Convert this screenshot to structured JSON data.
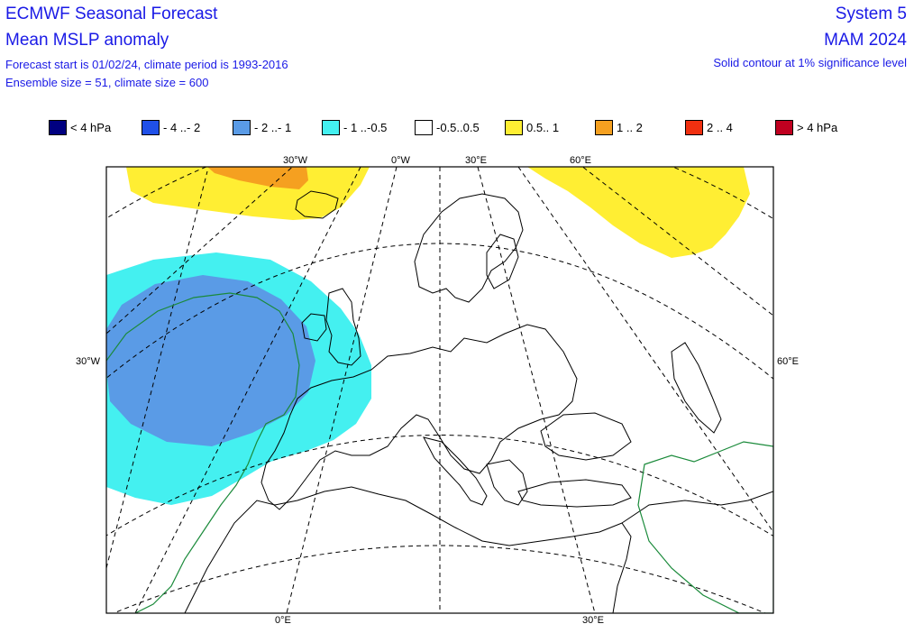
{
  "header": {
    "title": "ECMWF Seasonal Forecast",
    "subtitle": "Mean MSLP anomaly",
    "forecast_start": "Forecast start is 01/02/24, climate period is 1993-2016",
    "ensemble": "Ensemble size = 51, climate size = 600",
    "system": "System 5",
    "season": "MAM 2024",
    "significance": "Solid contour at 1% significance level"
  },
  "legend": [
    {
      "label": "< 4 hPa",
      "color": "#000080"
    },
    {
      "label": "- 4 ..- 2",
      "color": "#2050e8"
    },
    {
      "label": "- 2 ..- 1",
      "color": "#5a9be6"
    },
    {
      "label": "- 1 ..-0.5",
      "color": "#44f0f0"
    },
    {
      "label": "-0.5..0.5",
      "color": "#ffffff"
    },
    {
      "label": "0.5.. 1",
      "color": "#ffee33"
    },
    {
      "label": "1 .. 2",
      "color": "#f5a020"
    },
    {
      "label": "2 .. 4",
      "color": "#f03010"
    },
    {
      "label": "> 4 hPa",
      "color": "#c00020"
    }
  ],
  "axis_labels": {
    "top_30w": "30°W",
    "top_0w": "0°W",
    "top_30e": "30°E",
    "top_60e": "60°E",
    "left_30w": "30°W",
    "right_60e": "60°E",
    "bottom_0e": "0°E",
    "bottom_30e": "30°E"
  },
  "colors": {
    "anomaly_yellow": "#ffee33",
    "anomaly_orange": "#f5a020",
    "anomaly_cyan": "#44f0f0",
    "anomaly_blue": "#5a9be6",
    "significance_contour": "#1a8a3a"
  }
}
